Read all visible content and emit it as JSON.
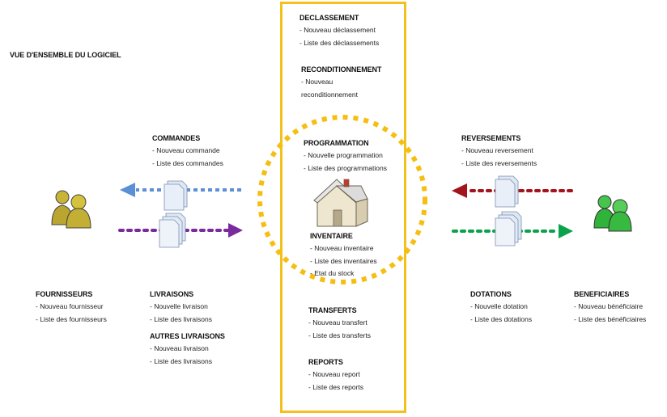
{
  "page_title": "VUE D'ENSEMBLE DU LOGICIEL",
  "colors": {
    "box_border": "#f3c11c",
    "circle_dots": "#f5be12",
    "arrow_blue": "#5b8fd6",
    "arrow_purple": "#7b2a9e",
    "arrow_red": "#a3141c",
    "arrow_green": "#0aa24a",
    "people_left": "#b9a530",
    "people_right": "#2fb33a"
  },
  "icons": {
    "left_people": "people-icon",
    "right_people": "people-icon",
    "house": "house-icon",
    "documents": "document-stack-icon"
  },
  "center": {
    "declassement": {
      "title": "DECLASSEMENT",
      "items": [
        "- Nouveau déclassement",
        "- Liste des déclassements"
      ]
    },
    "reconditionnement": {
      "title": "RECONDITIONNEMENT",
      "items": [
        "- Nouveau",
        "reconditionnement"
      ]
    },
    "programmation": {
      "title": "PROGRAMMATION",
      "items": [
        "- Nouvelle programmation",
        "- Liste des programmations"
      ]
    },
    "inventaire": {
      "title": "INVENTAIRE",
      "items": [
        "- Nouveau inventaire",
        "- Liste des inventaires",
        "- Etat du stock"
      ]
    },
    "transferts": {
      "title": "TRANSFERTS",
      "items": [
        "- Nouveau transfert",
        "- Liste des transferts"
      ]
    },
    "reports": {
      "title": "REPORTS",
      "items": [
        "- Nouveau report",
        "- Liste des reports"
      ]
    }
  },
  "left": {
    "commandes": {
      "title": "COMMANDES",
      "items": [
        "- Nouveau commande",
        "- Liste des commandes"
      ]
    },
    "fournisseurs": {
      "title": "FOURNISSEURS",
      "items": [
        "- Nouveau fournisseur",
        "- Liste des fournisseurs"
      ]
    },
    "livraisons": {
      "title": "LIVRAISONS",
      "items": [
        "- Nouvelle livraison",
        "- Liste des livraisons"
      ]
    },
    "autres_livraisons": {
      "title": "AUTRES LIVRAISONS",
      "items": [
        "- Nouveau livraison",
        "- Liste des livraisons"
      ]
    }
  },
  "right": {
    "reversements": {
      "title": "REVERSEMENTS",
      "items": [
        "- Nouveau reversement",
        "- Liste des reversements"
      ]
    },
    "dotations": {
      "title": "DOTATIONS",
      "items": [
        "- Nouvelle dotation",
        "- Liste des dotations"
      ]
    },
    "beneficiaires": {
      "title": "BENEFICIAIRES",
      "items": [
        "- Nouveau bénéficiaire",
        "- Liste des bénéficiaires"
      ]
    }
  }
}
